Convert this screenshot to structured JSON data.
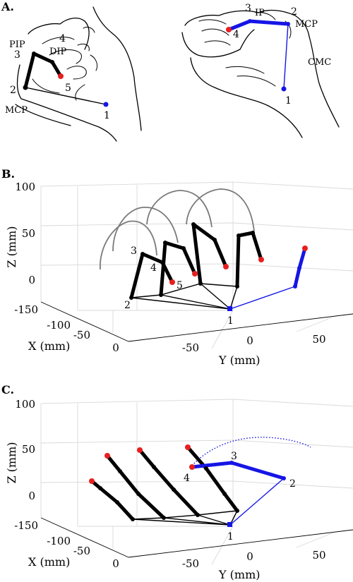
{
  "panels": {
    "a": {
      "letter": "A.",
      "index_labels": {
        "pip": "PIP",
        "dip": "DIP",
        "mcp": "MCP",
        "n1": "1",
        "n2": "2",
        "n3": "3",
        "n4": "4",
        "n5": "5"
      },
      "thumb_labels": {
        "ip": "IP",
        "mcp": "MCP",
        "cmc": "CMC",
        "n1": "1",
        "n2": "2",
        "n3": "3",
        "n4": "4"
      }
    },
    "b": {
      "letter": "B.",
      "labels": {
        "n1": "1",
        "n2": "2",
        "n3": "3",
        "n4": "4",
        "n5": "5"
      }
    },
    "c": {
      "letter": "C.",
      "labels": {
        "n1": "1",
        "n2": "2",
        "n3": "3",
        "n4": "4"
      }
    }
  },
  "axes": {
    "z_label": "Z (mm)",
    "x_label": "X (mm)",
    "y_label": "Y (mm)",
    "z_ticks": [
      "100",
      "50",
      "0",
      "-150"
    ],
    "x_ticks": [
      "-100",
      "-50",
      "0"
    ],
    "y_ticks": [
      "-50",
      "0",
      "50"
    ]
  },
  "colors": {
    "finger": "#000000",
    "thumb": "#1515e6",
    "fingertip": "#e62020",
    "trajectory": "#7a7a7a",
    "box": "#d9d9d9"
  }
}
